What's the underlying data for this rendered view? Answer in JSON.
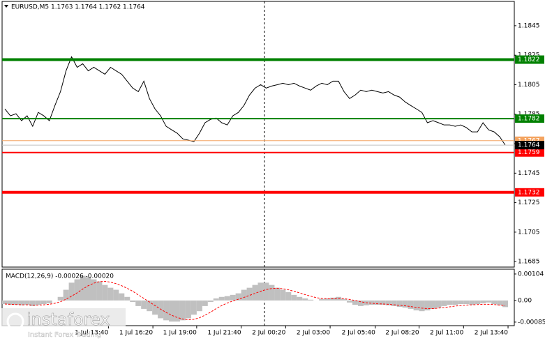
{
  "chart_data": [
    {
      "type": "line",
      "title": "EURUSD,M5 1.1763 1.1764 1.1762 1.1764",
      "xlim": [
        -0.5,
        91.625
      ],
      "ylim": [
        1.16813,
        1.18615
      ],
      "yticks": [
        1.1845,
        1.1825,
        1.1805,
        1.1785,
        1.1765,
        1.1745,
        1.1725,
        1.1705,
        1.1685
      ],
      "series": [
        {
          "color": "#000000",
          "values": [
            1.17886,
            1.17839,
            1.17853,
            1.17806,
            1.17839,
            1.17768,
            1.17862,
            1.17839,
            1.17806,
            1.17909,
            1.18003,
            1.18144,
            1.18239,
            1.18168,
            1.18192,
            1.18144,
            1.18168,
            1.18144,
            1.18121,
            1.18168,
            1.18144,
            1.18121,
            1.18074,
            1.18027,
            1.18003,
            1.18074,
            1.17956,
            1.17886,
            1.17839,
            1.17768,
            1.17744,
            1.17721,
            1.17683,
            1.17674,
            1.17664,
            1.17721,
            1.17792,
            1.17815,
            1.17824,
            1.17792,
            1.17777,
            1.17839,
            1.17862,
            1.17909,
            1.1798,
            1.18027,
            1.1805,
            1.18027,
            1.18041,
            1.1805,
            1.1806,
            1.1805,
            1.1806,
            1.18041,
            1.18027,
            1.18013,
            1.18041,
            1.1806,
            1.1805,
            1.18074,
            1.18074,
            1.18003,
            1.17956,
            1.1798,
            1.18013,
            1.18003,
            1.18013,
            1.18003,
            1.17994,
            1.18003,
            1.1798,
            1.17966,
            1.17933,
            1.17909,
            1.17886,
            1.17862,
            1.17792,
            1.17806,
            1.17792,
            1.17777,
            1.17777,
            1.17768,
            1.17777,
            1.17759,
            1.1773,
            1.1773,
            1.17792,
            1.17744,
            1.1773,
            1.17697,
            1.1764
          ]
        }
      ],
      "levels": [
        {
          "value": 1.1822,
          "color": "#008000",
          "width": 4
        },
        {
          "value": 1.1782,
          "color": "#008000",
          "width": 2
        },
        {
          "value": 1.1767,
          "color": "#f4a460",
          "width": 1
        },
        {
          "value": 1.1759,
          "color": "#ff0000",
          "width": 2
        },
        {
          "value": 1.1732,
          "color": "#ff0000",
          "width": 4
        }
      ],
      "last": {
        "value": 1.1764,
        "color": "#000000"
      }
    },
    {
      "type": "bar",
      "title": "MACD(12,26,9) -0.00026 -0.00020",
      "xlim": [
        -0.5,
        91.625
      ],
      "ylim": [
        -0.00099,
        0.00123
      ],
      "yticks": [
        0.00104,
        {
          "value": 0,
          "label": "0.00"
        },
        -0.00085
      ],
      "xticks": [
        {
          "value": 18.625,
          "label": "1 Jul 13:40"
        },
        {
          "value": 26.625,
          "label": "1 Jul 16:20"
        },
        {
          "value": 34.5,
          "label": "1 Jul 19:00"
        },
        {
          "value": 42.5,
          "label": "1 Jul 21:40"
        },
        {
          "value": 50.5,
          "label": "2 Jul 00:20"
        },
        {
          "value": 58.5,
          "label": "2 Jul 03:00"
        },
        {
          "value": 66.625,
          "label": "2 Jul 05:40"
        },
        {
          "value": 74.5,
          "label": "2 Jul 08:20"
        },
        {
          "value": 82.5,
          "label": "2 Jul 11:00"
        },
        {
          "value": 90.5,
          "label": "2 Jul 13:40"
        }
      ],
      "series": [
        {
          "type": "bar",
          "color": "#c0c0c0",
          "values": [
            -0.00014,
            -0.00017,
            -0.00017,
            -0.00019,
            -0.00017,
            -0.00022,
            -0.00017,
            -0.00014,
            -0.00011,
            0,
            0.00014,
            0.00042,
            0.0007,
            0.00083,
            0.00097,
            0.00092,
            0.00083,
            0.00075,
            0.00061,
            0.0005,
            0.00042,
            0.00028,
            0.00014,
            -6e-05,
            -0.00022,
            -0.00033,
            -0.00042,
            -0.00056,
            -0.0007,
            -0.00078,
            -0.00083,
            -0.00083,
            -0.00078,
            -0.0007,
            -0.00056,
            -0.00042,
            -0.00022,
            -6e-05,
            8e-05,
            0.00014,
            0.00017,
            0.00022,
            0.00028,
            0.00042,
            0.0005,
            0.00061,
            0.0007,
            0.0007,
            0.00061,
            0.0005,
            0.00042,
            0.00033,
            0.00022,
            0.00014,
            8e-05,
            3e-05,
            0,
            6e-05,
            8e-05,
            0.00011,
            0.00014,
            6e-05,
            -8e-05,
            -0.00017,
            -0.00022,
            -0.00019,
            -0.00017,
            -0.00017,
            -0.00017,
            -0.00019,
            -0.00022,
            -0.00025,
            -0.00028,
            -0.00033,
            -0.00039,
            -0.00042,
            -0.00039,
            -0.00033,
            -0.00028,
            -0.00022,
            -0.00017,
            -0.00017,
            -0.00014,
            -0.00014,
            -0.00017,
            -0.00014,
            -0.00011,
            -8e-05,
            -0.00014,
            -0.00019,
            -0.00026
          ]
        },
        {
          "type": "line",
          "color": "#ff0000",
          "values": [
            -0.00014,
            -0.00015,
            -0.00016,
            -0.00017,
            -0.00017,
            -0.00018,
            -0.00018,
            -0.00017,
            -0.00015,
            -0.00011,
            -5e-05,
            5e-05,
            0.00017,
            0.0003,
            0.00045,
            0.00058,
            0.00068,
            0.00074,
            0.00075,
            0.00072,
            0.00066,
            0.00058,
            0.00048,
            0.00036,
            0.00022,
            8e-05,
            -6e-05,
            -0.0002,
            -0.00034,
            -0.00047,
            -0.00058,
            -0.00067,
            -0.00073,
            -0.00076,
            -0.00074,
            -0.00068,
            -0.00058,
            -0.00046,
            -0.00032,
            -0.0002,
            -0.0001,
            -2e-05,
            5e-05,
            0.00012,
            0.0002,
            0.00028,
            0.00036,
            0.00043,
            0.00047,
            0.00048,
            0.00046,
            0.00042,
            0.00036,
            0.0003,
            0.00023,
            0.00017,
            0.00011,
            8e-05,
            7e-05,
            7e-05,
            8e-05,
            7e-05,
            4e-05,
            0,
            -5e-05,
            -9e-05,
            -0.00011,
            -0.00013,
            -0.00014,
            -0.00015,
            -0.00017,
            -0.00019,
            -0.00021,
            -0.00024,
            -0.00027,
            -0.0003,
            -0.00032,
            -0.00032,
            -0.0003,
            -0.00028,
            -0.00025,
            -0.00022,
            -0.0002,
            -0.00018,
            -0.00017,
            -0.00016,
            -0.00015,
            -0.00015,
            -0.00016,
            -0.00018,
            -0.0002
          ]
        }
      ]
    }
  ],
  "logo": {
    "brand": "instaforex",
    "tagline": "Instant Forex Trading"
  }
}
